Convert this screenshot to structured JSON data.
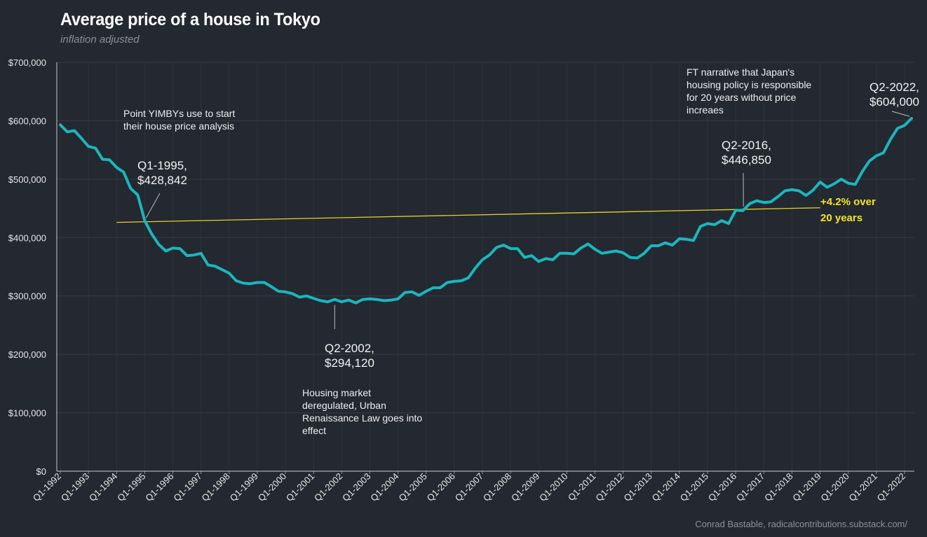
{
  "chart_data": {
    "type": "line",
    "title": "Average price of a house in Tokyo",
    "subtitle": "inflation adjusted",
    "source": "Conrad Bastable, radicalcontributions.substack.com/",
    "ylim": [
      0,
      700000
    ],
    "y_ticks": [
      "$0",
      "$100,000",
      "$200,000",
      "$300,000",
      "$400,000",
      "$500,000",
      "$600,000",
      "$700,000"
    ],
    "x_ticks": [
      "Q1-1992",
      "Q1-1993",
      "Q1-1994",
      "Q1-1995",
      "Q1-1996",
      "Q1-1997",
      "Q1-1998",
      "Q1-1999",
      "Q1-2000",
      "Q1-2001",
      "Q1-2002",
      "Q1-2003",
      "Q1-2004",
      "Q1-2005",
      "Q1-2006",
      "Q1-2007",
      "Q1-2008",
      "Q1-2009",
      "Q1-2010",
      "Q1-2011",
      "Q1-2012",
      "Q1-2013",
      "Q1-2014",
      "Q1-2015",
      "Q1-2016",
      "Q1-2017",
      "Q1-2018",
      "Q1-2019",
      "Q1-2020",
      "Q1-2021",
      "Q1-2022"
    ],
    "series_name": "Average price",
    "series_color": "#1ab6bd",
    "trend_color": "#e2d12c",
    "values": [
      593000,
      581000,
      583000,
      570000,
      556000,
      553000,
      534000,
      533000,
      520000,
      512000,
      484000,
      473000,
      428842,
      406000,
      388000,
      377000,
      382000,
      381000,
      369000,
      370000,
      373000,
      353000,
      351000,
      345000,
      339000,
      326000,
      322000,
      321000,
      323000,
      323000,
      316000,
      308000,
      307000,
      304000,
      298000,
      300000,
      296000,
      292000,
      290000,
      294120,
      290000,
      293000,
      288000,
      294000,
      295000,
      294000,
      292000,
      293000,
      295000,
      306000,
      307000,
      301000,
      308000,
      314000,
      314000,
      323000,
      325000,
      326000,
      331000,
      348000,
      362000,
      370000,
      383000,
      387000,
      381000,
      381000,
      366000,
      369000,
      359000,
      364000,
      362000,
      373000,
      373000,
      372000,
      382000,
      389000,
      380000,
      373000,
      375000,
      377000,
      374000,
      366000,
      365000,
      373000,
      386000,
      386000,
      391000,
      387000,
      398000,
      397000,
      395000,
      419000,
      424000,
      422000,
      429000,
      424000,
      446850,
      446000,
      458000,
      463000,
      460000,
      461000,
      470000,
      480000,
      482000,
      480000,
      472000,
      481000,
      495000,
      486000,
      492000,
      500000,
      493000,
      491000,
      513000,
      531000,
      540000,
      545000,
      568000,
      587000,
      592000,
      604000
    ],
    "trend": {
      "start_index": 8,
      "start_value": 426000,
      "end_index": 108,
      "end_value": 451000
    },
    "trend_label": [
      "+4.2% over",
      "20 years"
    ],
    "annotations": [
      {
        "id": "q1-1995",
        "lines": [
          "Q1-1995,",
          "$428,842"
        ]
      },
      {
        "id": "q2-2002",
        "lines": [
          "Q2-2002,",
          "$294,120"
        ]
      },
      {
        "id": "q2-2016",
        "lines": [
          "Q2-2016,",
          "$446,850"
        ]
      },
      {
        "id": "q2-2022",
        "lines": [
          "Q2-2022,",
          "$604,000"
        ]
      }
    ],
    "notes": [
      {
        "id": "yimby",
        "lines": [
          "Point YIMBYs use to start",
          "their house price analysis"
        ]
      },
      {
        "id": "dereg",
        "lines": [
          "Housing market",
          "deregulated, Urban",
          "Renaissance Law goes into",
          "effect"
        ]
      },
      {
        "id": "ft",
        "lines": [
          "FT narrative that Japan's",
          "housing policy is responsible",
          "for 20 years without price",
          "increaes"
        ]
      }
    ]
  }
}
